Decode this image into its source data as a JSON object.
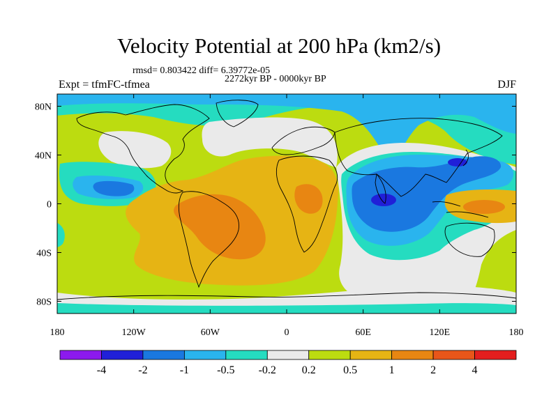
{
  "title": "Velocity Potential at 200 hPa (km2/s)",
  "stats": "rmsd= 0.803422 diff= 6.39772e-05",
  "period": "2272kyr BP - 0000kyr BP",
  "expt": "Expt = tfmFC-tfmea",
  "season": "DJF",
  "axes": {
    "lon_ticks": [
      {
        "value": -180,
        "label": "180"
      },
      {
        "value": -120,
        "label": "120W"
      },
      {
        "value": -60,
        "label": "60W"
      },
      {
        "value": 0,
        "label": "0"
      },
      {
        "value": 60,
        "label": "60E"
      },
      {
        "value": 120,
        "label": "120E"
      },
      {
        "value": 180,
        "label": "180"
      }
    ],
    "lat_ticks": [
      {
        "value": 80,
        "label": "80N"
      },
      {
        "value": 40,
        "label": "40N"
      },
      {
        "value": 0,
        "label": "0"
      },
      {
        "value": -40,
        "label": "40S"
      },
      {
        "value": -80,
        "label": "80S"
      }
    ],
    "lon_range": [
      -180,
      180
    ],
    "lat_range": [
      -90,
      90
    ]
  },
  "colorbar": {
    "colors": [
      "#8c1aee",
      "#2020d8",
      "#1a78e0",
      "#2ab4ee",
      "#25dcc0",
      "#eaeaea",
      "#bcdc10",
      "#e6b414",
      "#e88612",
      "#e8561a",
      "#e41e1e"
    ],
    "labels": [
      "-4",
      "-2",
      "-1",
      "-0.5",
      "-0.2",
      "0.2",
      "0.5",
      "1",
      "2",
      "4"
    ]
  }
}
